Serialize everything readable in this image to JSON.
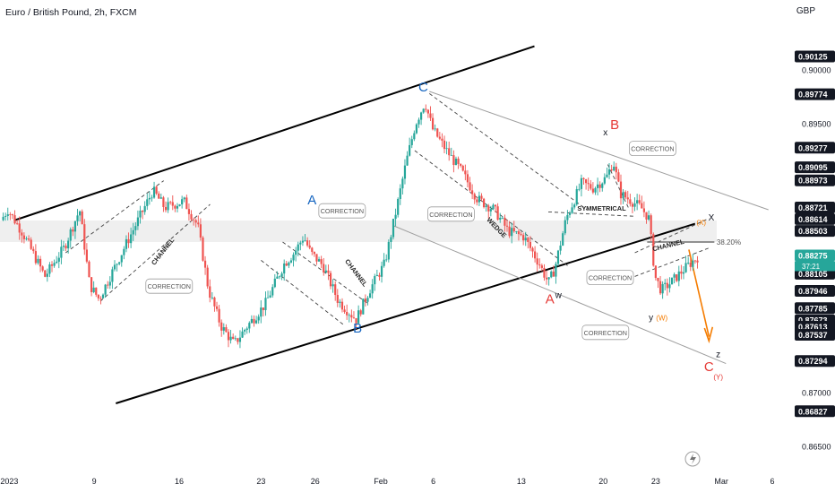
{
  "header": {
    "title": "Euro / British Pound, 2h, FXCM",
    "currency": "GBP"
  },
  "colors": {
    "bull": "#26a69a",
    "bear": "#ef5350",
    "wave_blue": "#1565c0",
    "wave_red": "#e53935",
    "wave_orange": "#f57c00",
    "price_tag": "#26a69a",
    "label_dark": "#131722"
  },
  "chart_data": {
    "type": "candlestick",
    "instrument": "Euro / British Pound",
    "timeframe": "2h",
    "source": "FXCM",
    "ylim": [
      0.863,
      0.9045
    ],
    "x_ticks": [
      "2023",
      "9",
      "16",
      "23",
      "26",
      "Feb",
      "6",
      "13",
      "20",
      "23",
      "Mar",
      "6"
    ],
    "y_ticks": [
      {
        "v": 0.90125,
        "label": "0.90125",
        "boxed": true
      },
      {
        "v": 0.9,
        "label": "0.90000",
        "boxed": false
      },
      {
        "v": 0.89774,
        "label": "0.89774",
        "boxed": true
      },
      {
        "v": 0.895,
        "label": "0.89500",
        "boxed": false
      },
      {
        "v": 0.89277,
        "label": "0.89277",
        "boxed": true
      },
      {
        "v": 0.89095,
        "label": "0.89095",
        "boxed": true
      },
      {
        "v": 0.88973,
        "label": "0.88973",
        "boxed": true
      },
      {
        "v": 0.88721,
        "label": "0.88721",
        "boxed": true
      },
      {
        "v": 0.88614,
        "label": "0.88614",
        "boxed": true
      },
      {
        "v": 0.88503,
        "label": "0.88503",
        "boxed": true
      },
      {
        "v": 0.88275,
        "label": "0.88275",
        "boxed": true,
        "highlight": true
      },
      {
        "v": 0.88105,
        "label": "0.88105",
        "boxed": true
      },
      {
        "v": 0.87946,
        "label": "0.87946",
        "boxed": true
      },
      {
        "v": 0.87785,
        "label": "0.87785",
        "boxed": true
      },
      {
        "v": 0.87673,
        "label": "0.87673",
        "boxed": true
      },
      {
        "v": 0.87613,
        "label": "0.87613",
        "boxed": true
      },
      {
        "v": 0.87537,
        "label": "0.87537",
        "boxed": true
      },
      {
        "v": 0.87294,
        "label": "0.87294",
        "boxed": true
      },
      {
        "v": 0.87,
        "label": "0.87000",
        "boxed": false
      },
      {
        "v": 0.86827,
        "label": "0.86827",
        "boxed": true
      },
      {
        "v": 0.865,
        "label": "0.86500",
        "boxed": false
      }
    ],
    "last_price": 0.88275,
    "countdown": "37:21",
    "fib_level": {
      "label": "38.20%",
      "v": 0.884
    },
    "wave_labels": [
      {
        "text": "C",
        "v": 0.898,
        "t": 0.548,
        "color": "wave_blue"
      },
      {
        "text": "A",
        "v": 0.8875,
        "t": 0.404,
        "color": "wave_blue"
      },
      {
        "text": "B",
        "v": 0.8756,
        "t": 0.463,
        "color": "wave_blue"
      },
      {
        "text": "B",
        "v": 0.8945,
        "t": 0.796,
        "color": "wave_red"
      },
      {
        "text": "x",
        "v": 0.8939,
        "t": 0.784,
        "color": "label_dark"
      },
      {
        "text": "A",
        "v": 0.8783,
        "t": 0.712,
        "color": "wave_red"
      },
      {
        "text": "w",
        "v": 0.8788,
        "t": 0.723,
        "color": "label_dark"
      },
      {
        "text": "C",
        "v": 0.872,
        "t": 0.918,
        "color": "wave_red"
      },
      {
        "text": "z",
        "v": 0.8733,
        "t": 0.93,
        "color": "label_dark"
      },
      {
        "text": "(Y)",
        "v": 0.8712,
        "t": 0.93,
        "color": "wave_red"
      },
      {
        "text": "y",
        "v": 0.8767,
        "t": 0.843,
        "color": "label_dark"
      },
      {
        "text": "(W)",
        "v": 0.8767,
        "t": 0.857,
        "color": "wave_orange"
      },
      {
        "text": "(X)",
        "v": 0.8856,
        "t": 0.908,
        "color": "wave_orange"
      },
      {
        "text": "X",
        "v": 0.886,
        "t": 0.921,
        "color": "label_dark"
      }
    ],
    "annotations": [
      {
        "text": "CORRECTION",
        "v": 0.8869,
        "t": 0.443
      },
      {
        "text": "CORRECTION",
        "v": 0.8799,
        "t": 0.219
      },
      {
        "text": "CORRECTION",
        "v": 0.8866,
        "t": 0.584
      },
      {
        "text": "CORRECTION",
        "v": 0.8927,
        "t": 0.845
      },
      {
        "text": "CORRECTION",
        "v": 0.8807,
        "t": 0.79
      },
      {
        "text": "CORRECTION",
        "v": 0.8756,
        "t": 0.784
      }
    ],
    "pattern_labels": [
      {
        "text": "CHANNEL",
        "v": 0.883,
        "t": 0.213,
        "rotate": -52
      },
      {
        "text": "CHANNEL",
        "v": 0.881,
        "t": 0.459,
        "rotate": 53
      },
      {
        "text": "WEDGE",
        "v": 0.8852,
        "t": 0.641,
        "rotate": 46
      },
      {
        "text": "SYMMETRICAL",
        "v": 0.8869,
        "t": 0.779,
        "rotate": 0
      },
      {
        "text": "CHANNEL",
        "v": 0.8835,
        "t": 0.866,
        "rotate": -14
      }
    ]
  }
}
